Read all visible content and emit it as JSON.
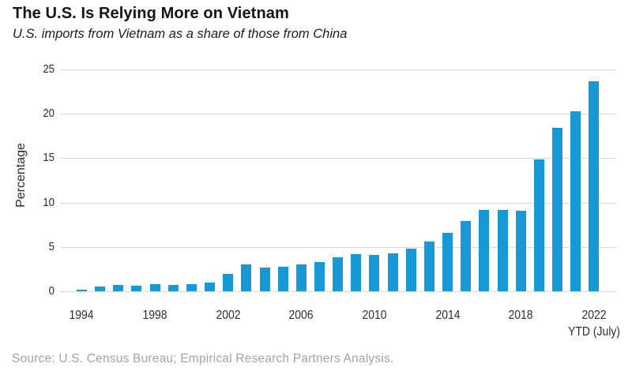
{
  "chart_data": {
    "type": "bar",
    "title": "The U.S. Is Relying More on Vietnam",
    "subtitle": "U.S. imports from Vietnam as a share of those from China",
    "ylabel": "Percentage",
    "xlabel": "",
    "ylim": [
      0,
      25
    ],
    "yticks": [
      0,
      5,
      10,
      15,
      20,
      25
    ],
    "grid": "horizontal-only",
    "legend": "none",
    "bar_color": "#1699d5",
    "gridline_color": "#d9d9d9",
    "categories": [
      1994,
      1995,
      1996,
      1997,
      1998,
      1999,
      2000,
      2001,
      2002,
      2003,
      2004,
      2005,
      2006,
      2007,
      2008,
      2009,
      2010,
      2011,
      2012,
      2013,
      2014,
      2015,
      2016,
      2017,
      2018,
      2019,
      2020,
      2021,
      2022
    ],
    "values": [
      0.2,
      0.5,
      0.7,
      0.6,
      0.8,
      0.7,
      0.8,
      1.0,
      2.0,
      3.0,
      2.7,
      2.8,
      3.0,
      3.3,
      3.8,
      4.2,
      4.1,
      4.3,
      4.8,
      5.6,
      6.6,
      7.9,
      9.2,
      9.2,
      9.1,
      14.9,
      18.4,
      20.3,
      23.7
    ],
    "xtick_years": [
      1994,
      1998,
      2002,
      2006,
      2010,
      2014,
      2018,
      2022
    ],
    "xtick_note": "YTD (July)",
    "xtick_note_year": 2022,
    "source": "Source: U.S. Census Bureau; Empirical Research Partners Analysis."
  }
}
